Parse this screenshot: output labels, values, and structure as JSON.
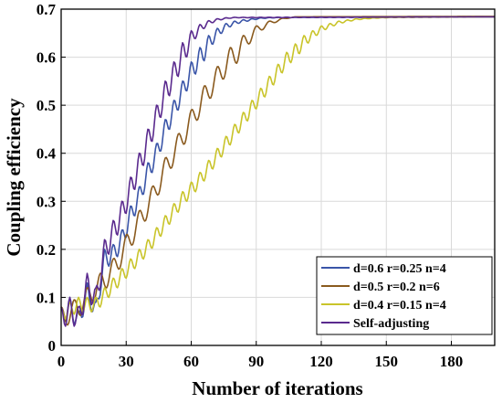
{
  "chart_data": {
    "type": "line",
    "title": "",
    "xlabel": "Number of iterations",
    "ylabel": "Coupling efficiency",
    "xlim": [
      0,
      200
    ],
    "ylim": [
      0,
      0.7
    ],
    "xticks": [
      0,
      30,
      60,
      90,
      120,
      150,
      180
    ],
    "yticks": [
      0,
      0.1,
      0.2,
      0.3,
      0.4,
      0.5,
      0.6,
      0.7
    ],
    "ytick_labels": [
      "0",
      "0.1",
      "0.2",
      "0.3",
      "0.4",
      "0.5",
      "0.6",
      "0.7"
    ],
    "grid": true,
    "legend_position": "bottom-right",
    "series": [
      {
        "name": "d=0.6 r=0.25 n=4",
        "color": "#3a55a8",
        "period": 4,
        "dip": 0.04,
        "points": [
          [
            0,
            0.08
          ],
          [
            4,
            0.1
          ],
          [
            8,
            0.07
          ],
          [
            12,
            0.13
          ],
          [
            16,
            0.09
          ],
          [
            20,
            0.2
          ],
          [
            24,
            0.21
          ],
          [
            28,
            0.24
          ],
          [
            32,
            0.29
          ],
          [
            36,
            0.33
          ],
          [
            40,
            0.38
          ],
          [
            44,
            0.42
          ],
          [
            48,
            0.47
          ],
          [
            52,
            0.51
          ],
          [
            56,
            0.55
          ],
          [
            60,
            0.59
          ],
          [
            64,
            0.62
          ],
          [
            68,
            0.645
          ],
          [
            72,
            0.66
          ],
          [
            76,
            0.67
          ],
          [
            80,
            0.675
          ],
          [
            84,
            0.678
          ],
          [
            88,
            0.68
          ],
          [
            92,
            0.682
          ],
          [
            100,
            0.683
          ],
          [
            200,
            0.684
          ]
        ]
      },
      {
        "name": "d=0.5 r=0.2 n=6",
        "color": "#8a5a1e",
        "period": 6,
        "dip": 0.045,
        "points": [
          [
            0,
            0.08
          ],
          [
            6,
            0.095
          ],
          [
            12,
            0.12
          ],
          [
            18,
            0.15
          ],
          [
            24,
            0.18
          ],
          [
            30,
            0.23
          ],
          [
            36,
            0.28
          ],
          [
            42,
            0.33
          ],
          [
            48,
            0.39
          ],
          [
            54,
            0.44
          ],
          [
            60,
            0.49
          ],
          [
            66,
            0.54
          ],
          [
            72,
            0.58
          ],
          [
            78,
            0.62
          ],
          [
            84,
            0.645
          ],
          [
            90,
            0.665
          ],
          [
            96,
            0.675
          ],
          [
            102,
            0.681
          ],
          [
            108,
            0.684
          ],
          [
            200,
            0.685
          ]
        ]
      },
      {
        "name": "d=0.4 r=0.15 n=4",
        "color": "#c9c42a",
        "period": 4,
        "dip": 0.03,
        "points": [
          [
            0,
            0.08
          ],
          [
            8,
            0.1
          ],
          [
            16,
            0.1
          ],
          [
            24,
            0.14
          ],
          [
            32,
            0.18
          ],
          [
            40,
            0.22
          ],
          [
            48,
            0.27
          ],
          [
            56,
            0.32
          ],
          [
            64,
            0.36
          ],
          [
            72,
            0.41
          ],
          [
            80,
            0.46
          ],
          [
            88,
            0.51
          ],
          [
            96,
            0.56
          ],
          [
            104,
            0.61
          ],
          [
            112,
            0.645
          ],
          [
            120,
            0.665
          ],
          [
            128,
            0.675
          ],
          [
            136,
            0.68
          ],
          [
            144,
            0.682
          ],
          [
            152,
            0.683
          ],
          [
            200,
            0.684
          ]
        ]
      },
      {
        "name": "Self-adjusting",
        "color": "#5a2a8e",
        "period": 4,
        "dip": 0.05,
        "points": [
          [
            0,
            0.08
          ],
          [
            4,
            0.1
          ],
          [
            8,
            0.08
          ],
          [
            12,
            0.15
          ],
          [
            16,
            0.12
          ],
          [
            20,
            0.22
          ],
          [
            24,
            0.26
          ],
          [
            28,
            0.3
          ],
          [
            32,
            0.35
          ],
          [
            36,
            0.4
          ],
          [
            40,
            0.45
          ],
          [
            44,
            0.5
          ],
          [
            48,
            0.55
          ],
          [
            52,
            0.59
          ],
          [
            56,
            0.63
          ],
          [
            60,
            0.655
          ],
          [
            64,
            0.668
          ],
          [
            68,
            0.676
          ],
          [
            72,
            0.68
          ],
          [
            76,
            0.682
          ],
          [
            80,
            0.683
          ],
          [
            200,
            0.684
          ]
        ]
      }
    ]
  }
}
